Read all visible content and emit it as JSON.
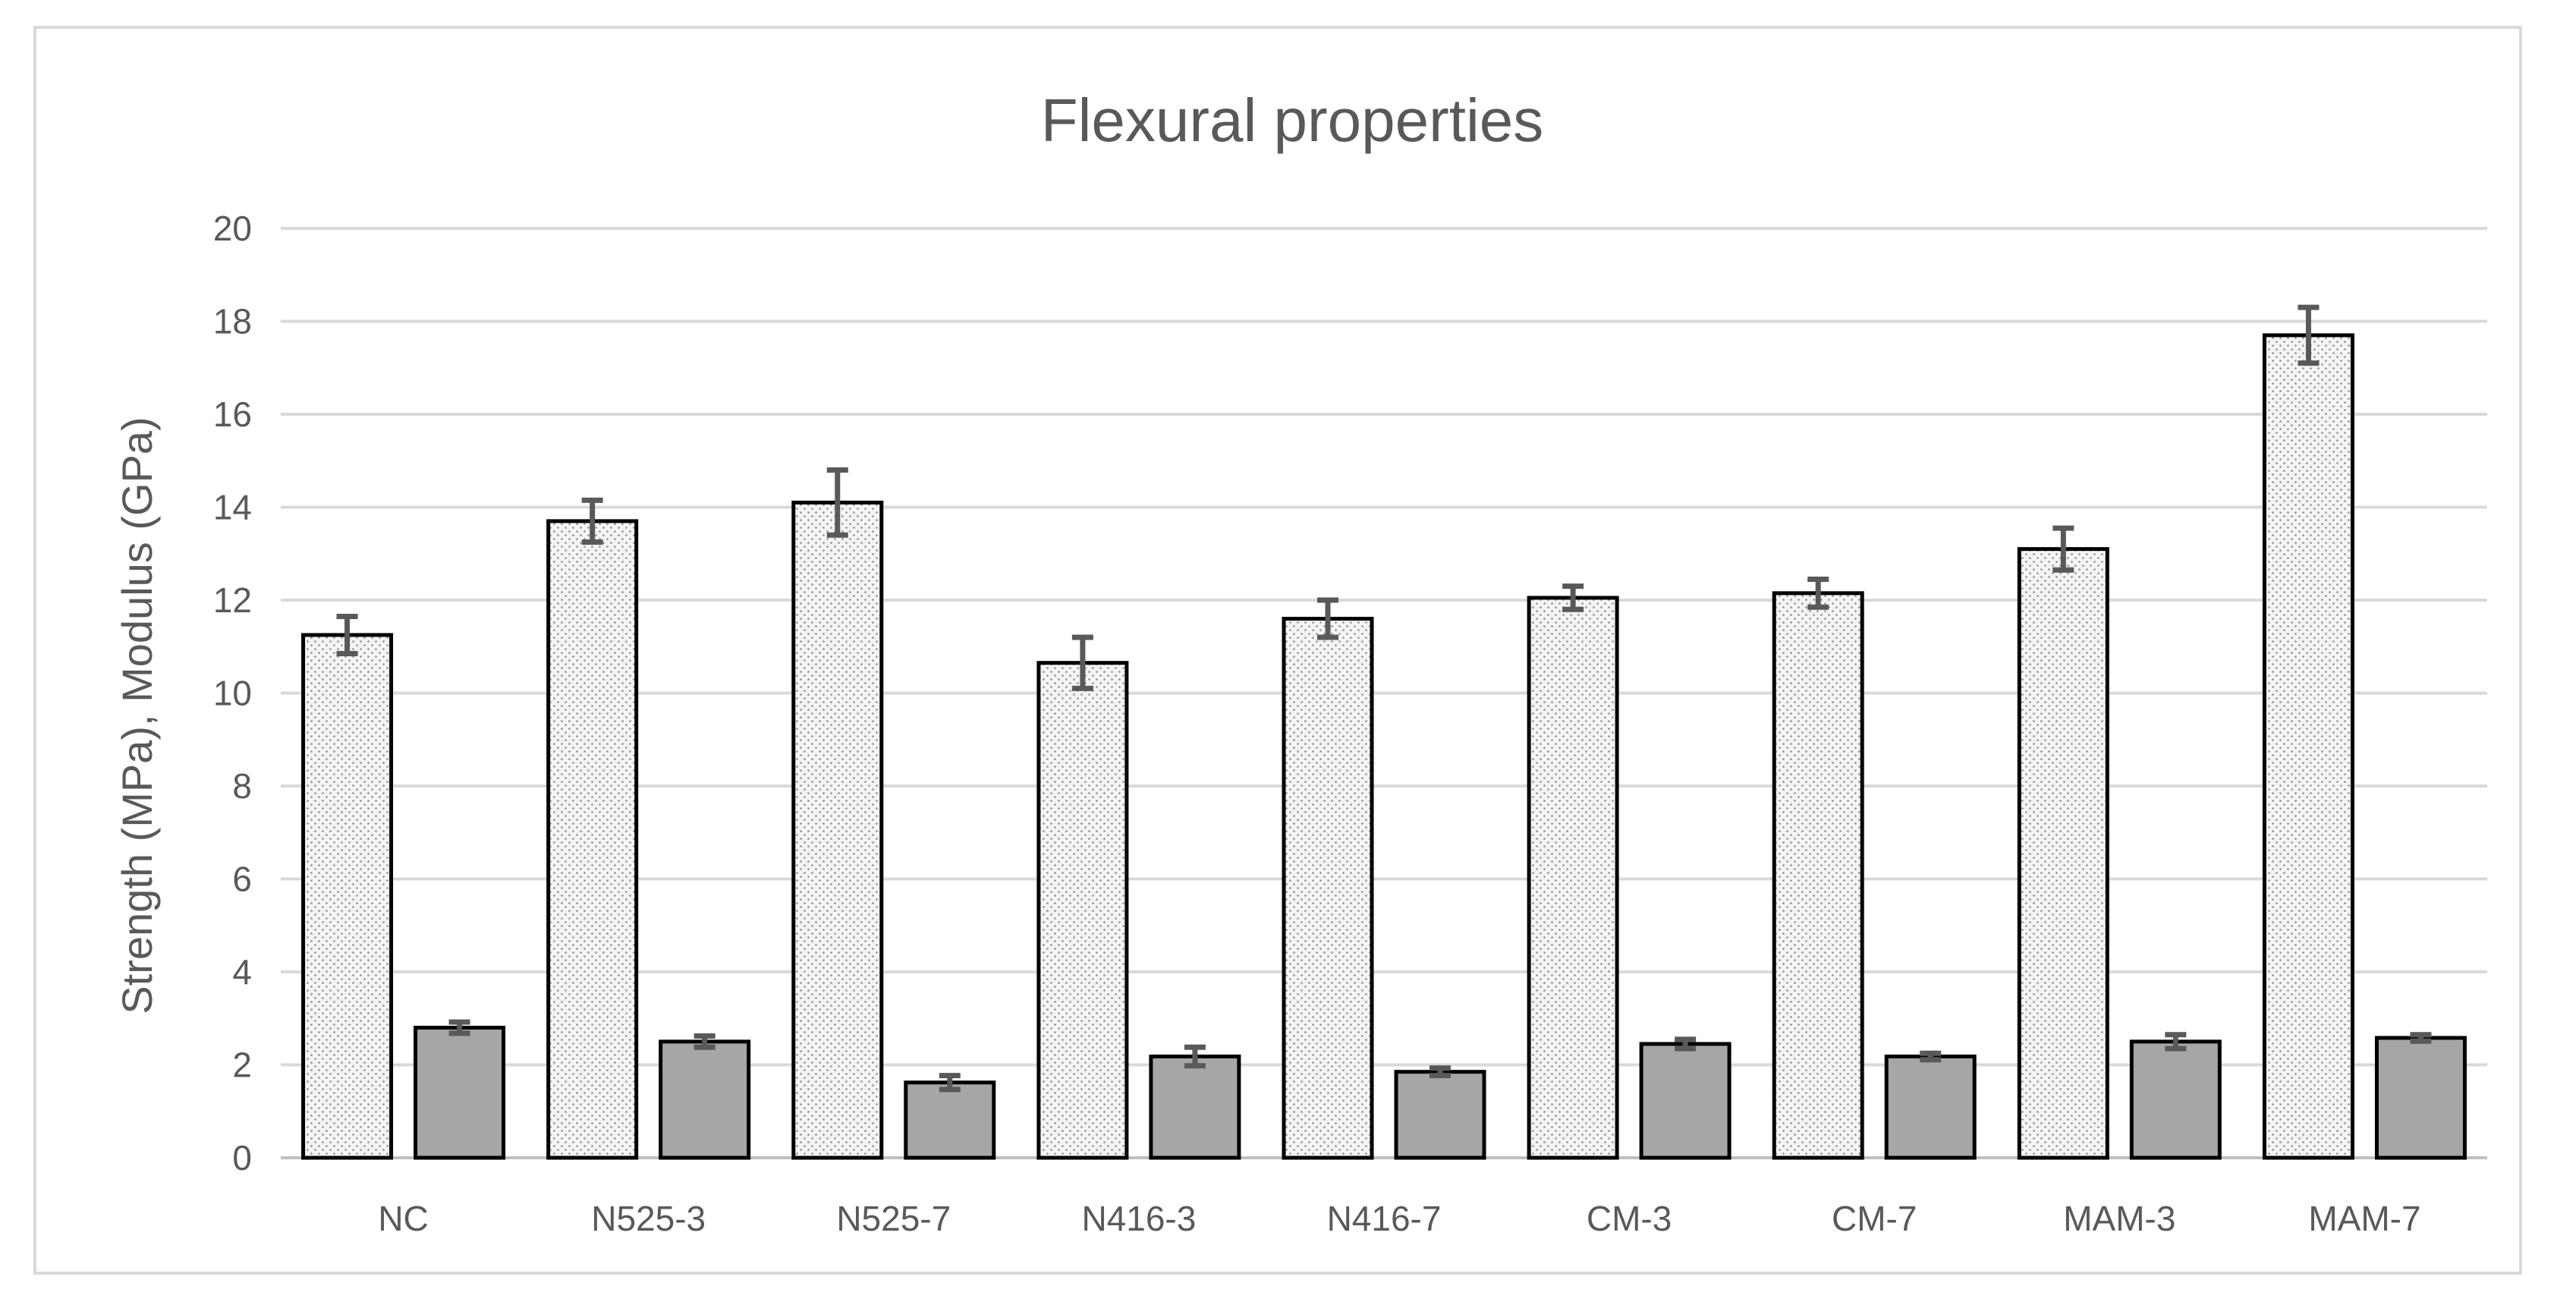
{
  "chart_data": {
    "type": "bar",
    "title": "Flexural properties",
    "xlabel": "",
    "ylabel": "Strength (MPa), Modulus (GPa)",
    "ylim": [
      0,
      20
    ],
    "yticks": [
      0,
      2,
      4,
      6,
      8,
      10,
      12,
      14,
      16,
      18,
      20
    ],
    "grid": true,
    "legend": "none",
    "categories": [
      "NC",
      "N525-3",
      "N525-7",
      "N416-3",
      "N416-7",
      "CM-3",
      "CM-7",
      "MAM-3",
      "MAM-7"
    ],
    "series": [
      {
        "values": [
          11.25,
          13.7,
          14.1,
          10.65,
          11.6,
          12.05,
          12.15,
          13.1,
          17.7
        ],
        "errors": [
          0.4,
          0.45,
          0.7,
          0.55,
          0.4,
          0.25,
          0.3,
          0.45,
          0.6
        ],
        "pattern": "dotted",
        "color": "#f2f2f2"
      },
      {
        "values": [
          2.8,
          2.5,
          1.62,
          2.18,
          1.85,
          2.45,
          2.18,
          2.5,
          2.58
        ],
        "errors": [
          0.12,
          0.12,
          0.15,
          0.2,
          0.08,
          0.1,
          0.07,
          0.15,
          0.07
        ],
        "pattern": "solid",
        "color": "#a6a6a6"
      }
    ],
    "colors": {
      "grid": "#d9d9d9",
      "axis": "#bfbfbf",
      "bar_outline": "#000000",
      "error_bar": "#595959",
      "text": "#595959"
    }
  }
}
